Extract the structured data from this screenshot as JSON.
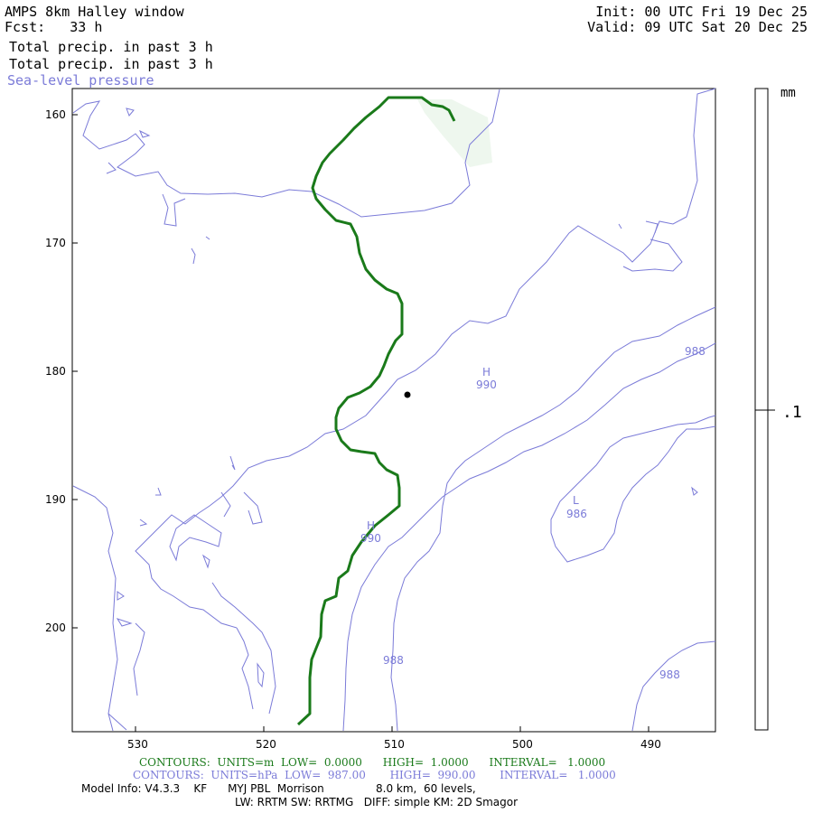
{
  "header": {
    "title": "AMPS 8km Halley window",
    "forecast": "Fcst:   33 h",
    "init": "Init: 00 UTC Fri 19 Dec 25",
    "valid": "Valid: 09 UTC Sat 20 Dec 25",
    "field1": "Total precip. in past 3 h",
    "field2": "Total precip. in past 3 h",
    "field3": "Sea-level pressure"
  },
  "map": {
    "y_ticks": [
      "160",
      "170",
      "180",
      "190",
      "200"
    ],
    "x_ticks": [
      "530",
      "520",
      "510",
      "500",
      "490"
    ],
    "contour_labels": {
      "h1": "H",
      "h1v": "990",
      "h2": "H",
      "h2v": "990",
      "l1": "L",
      "l1v": "986",
      "c988a": "988",
      "c988b": "988",
      "c988c": "988"
    },
    "colors": {
      "pressure": "#7b7bd8",
      "precip": "#1a7a1a",
      "shade": "#eef7ee"
    }
  },
  "colorbar": {
    "unit": "mm",
    "level": ".1"
  },
  "footer": {
    "contours_precip": "CONTOURS:  UNITS=m  LOW=  0.0000      HIGH=  1.0000      INTERVAL=   1.0000",
    "contours_pressure": "CONTOURS:  UNITS=hPa  LOW=  987.00       HIGH=  990.00       INTERVAL=   1.0000",
    "model_info": "Model Info: V4.3.3    KF      MYJ PBL  Morrison               8.0 km,  60 levels,",
    "model_info2": "LW: RRTM SW: RRTMG   DIFF: simple KM: 2D Smagor"
  }
}
